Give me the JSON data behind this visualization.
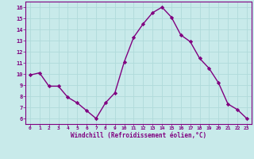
{
  "x": [
    0,
    1,
    2,
    3,
    4,
    5,
    6,
    7,
    8,
    9,
    10,
    11,
    12,
    13,
    14,
    15,
    16,
    17,
    18,
    19,
    20,
    21,
    22,
    23
  ],
  "y": [
    9.9,
    10.1,
    8.9,
    8.9,
    7.9,
    7.4,
    6.7,
    6.0,
    7.4,
    8.3,
    11.1,
    13.3,
    14.5,
    15.5,
    16.0,
    15.1,
    13.5,
    12.9,
    11.4,
    10.5,
    9.2,
    7.3,
    6.8,
    6.0
  ],
  "xlabel": "Windchill (Refroidissement éolien,°C)",
  "xlim": [
    -0.5,
    23.5
  ],
  "ylim": [
    5.5,
    16.5
  ],
  "yticks": [
    6,
    7,
    8,
    9,
    10,
    11,
    12,
    13,
    14,
    15,
    16
  ],
  "xticks": [
    0,
    1,
    2,
    3,
    4,
    5,
    6,
    7,
    8,
    9,
    10,
    11,
    12,
    13,
    14,
    15,
    16,
    17,
    18,
    19,
    20,
    21,
    22,
    23
  ],
  "line_color": "#800080",
  "marker_color": "#800080",
  "bg_color": "#c8eaea",
  "grid_color": "#b0dada",
  "tick_label_color": "#800080",
  "axis_label_color": "#800080",
  "marker": "D",
  "markersize": 2.2,
  "linewidth": 1.0
}
